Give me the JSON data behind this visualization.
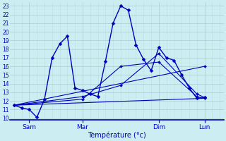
{
  "xlabel": "Température (°c)",
  "background_color": "#cceef2",
  "line_color": "#0000bb",
  "grid_major_color": "#aacccc",
  "grid_minor_color": "#bbdddd",
  "ylim": [
    9.8,
    23.4
  ],
  "xlim": [
    -0.5,
    27.5
  ],
  "yticks": [
    10,
    11,
    12,
    13,
    14,
    15,
    16,
    17,
    18,
    19,
    20,
    21,
    22,
    23
  ],
  "xtick_positions": [
    2,
    9,
    19,
    25
  ],
  "xtick_labels": [
    "Sam",
    "Mar",
    "Dim",
    "Lun"
  ],
  "series": [
    {
      "x": [
        0,
        1,
        2,
        3,
        4,
        5,
        6,
        7,
        8,
        9,
        10,
        11,
        12,
        13,
        14,
        15,
        16,
        17,
        18,
        19,
        20,
        21,
        22,
        23,
        24,
        25
      ],
      "y": [
        11.5,
        11.2,
        11.0,
        10.1,
        12.2,
        17.0,
        18.6,
        19.5,
        13.5,
        13.2,
        12.8,
        12.5,
        16.6,
        21.0,
        23.0,
        22.5,
        18.5,
        16.8,
        15.5,
        18.2,
        17.0,
        16.7,
        15.0,
        13.5,
        12.3,
        12.4
      ],
      "lw": 1.0,
      "ms": 2.5
    },
    {
      "x": [
        0,
        9,
        14,
        19,
        24,
        25
      ],
      "y": [
        11.5,
        12.2,
        16.0,
        16.5,
        12.5,
        12.3
      ],
      "lw": 0.8,
      "ms": 2.0
    },
    {
      "x": [
        0,
        9,
        14,
        19,
        24,
        25
      ],
      "y": [
        11.5,
        12.5,
        13.8,
        17.5,
        12.8,
        12.4
      ],
      "lw": 0.8,
      "ms": 2.0
    },
    {
      "x": [
        0,
        25
      ],
      "y": [
        11.5,
        12.3
      ],
      "lw": 0.8,
      "ms": 2.0
    },
    {
      "x": [
        0,
        25
      ],
      "y": [
        11.5,
        16.0
      ],
      "lw": 0.8,
      "ms": 2.0
    }
  ]
}
